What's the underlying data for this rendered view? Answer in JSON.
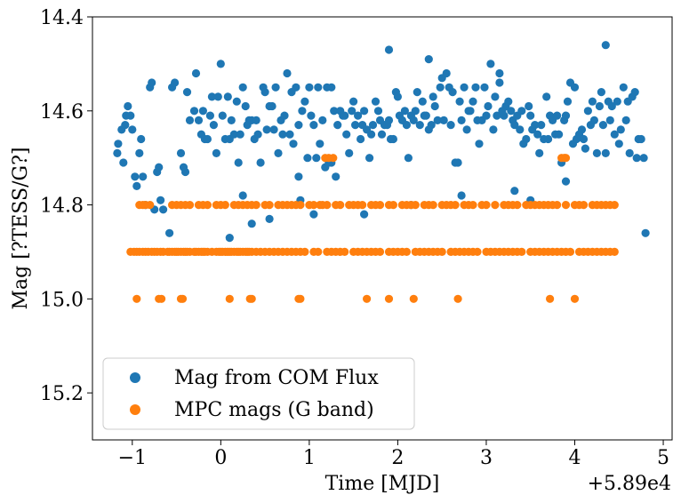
{
  "chart_data": {
    "type": "scatter",
    "xlabel": "Time [MJD]",
    "ylabel": "Mag [?TESS/G?]",
    "x_offset_label": "+5.89e4",
    "xlim": [
      -1.45,
      5.1
    ],
    "ylim": [
      15.3,
      14.4
    ],
    "y_inverted": true,
    "xticks": [
      -1,
      0,
      1,
      2,
      3,
      4,
      5
    ],
    "xtick_labels": [
      "−1",
      "0",
      "1",
      "2",
      "3",
      "4",
      "5"
    ],
    "yticks": [
      14.4,
      14.6,
      14.8,
      15.0,
      15.2
    ],
    "ytick_labels": [
      "14.4",
      "14.6",
      "14.8",
      "15.0",
      "15.2"
    ],
    "grid": false,
    "legend_position": "lower-left",
    "series": [
      {
        "name": "Mag from COM Flux",
        "color": "#1f77b4",
        "x": [
          -1.17,
          -1.16,
          -1.12,
          -1.1,
          -1.08,
          -1.07,
          -1.05,
          -1.02,
          -1.0,
          -0.97,
          -0.95,
          -0.92,
          -0.9,
          -0.88,
          -0.85,
          -0.8,
          -0.78,
          -0.75,
          -0.72,
          -0.7,
          -0.68,
          -0.55,
          -0.52,
          -0.45,
          -0.42,
          -0.4,
          -0.38,
          -0.35,
          -0.3,
          -0.28,
          -0.25,
          -0.22,
          -0.2,
          -0.18,
          -0.15,
          -0.12,
          -0.1,
          -0.08,
          -0.05,
          -0.03,
          0.0,
          0.02,
          0.05,
          0.08,
          0.1,
          0.12,
          0.15,
          0.18,
          0.2,
          0.22,
          0.25,
          0.28,
          0.3,
          0.32,
          0.35,
          0.38,
          0.4,
          0.42,
          0.45,
          0.48,
          0.5,
          0.52,
          0.55,
          0.58,
          0.6,
          0.62,
          0.65,
          0.68,
          0.7,
          0.72,
          0.75,
          0.78,
          0.8,
          0.82,
          0.85,
          0.88,
          0.9,
          0.92,
          0.95,
          0.98,
          1.0,
          1.02,
          1.05,
          1.08,
          1.1,
          1.12,
          1.15,
          1.18,
          1.2,
          1.22,
          1.25,
          1.28,
          1.3,
          1.32,
          1.35,
          1.38,
          1.4,
          1.42,
          1.45,
          1.48,
          1.5,
          1.52,
          1.55,
          1.58,
          1.6,
          1.62,
          1.65,
          1.68,
          1.7,
          1.72,
          1.75,
          1.78,
          1.8,
          1.82,
          1.85,
          1.88,
          1.9,
          1.92,
          1.95,
          1.98,
          2.0,
          2.02,
          2.05,
          2.08,
          2.1,
          2.12,
          2.15,
          2.18,
          2.2,
          2.22,
          2.25,
          2.28,
          2.3,
          2.32,
          2.35,
          2.38,
          2.4,
          2.42,
          2.45,
          2.48,
          2.5,
          2.52,
          2.55,
          2.58,
          2.6,
          2.62,
          2.65,
          2.68,
          2.7,
          2.72,
          2.75,
          2.78,
          2.8,
          2.82,
          2.85,
          2.88,
          2.9,
          2.92,
          2.95,
          2.98,
          3.0,
          3.02,
          3.05,
          3.08,
          3.1,
          3.12,
          3.15,
          3.18,
          3.2,
          3.22,
          3.25,
          3.28,
          3.3,
          3.32,
          3.35,
          3.38,
          3.4,
          3.42,
          3.45,
          3.48,
          3.5,
          3.52,
          3.55,
          3.58,
          3.6,
          3.62,
          3.65,
          3.68,
          3.7,
          3.72,
          3.75,
          3.78,
          3.8,
          3.82,
          3.85,
          3.88,
          3.9,
          3.92,
          3.95,
          3.98,
          4.0,
          4.02,
          4.05,
          4.08,
          4.1,
          4.12,
          4.15,
          4.18,
          4.2,
          4.22,
          4.25,
          4.28,
          4.3,
          4.32,
          4.35,
          4.38,
          4.4,
          4.42,
          4.45,
          4.48,
          4.5,
          4.52,
          4.55,
          4.58,
          4.6,
          4.62,
          4.65,
          4.68,
          4.7,
          4.72,
          4.75,
          4.78,
          4.8,
          -0.58,
          0.1,
          0.25,
          0.88,
          1.25,
          1.9,
          2.35,
          3.15,
          3.5,
          -0.65,
          0.35,
          0.55,
          1.05,
          1.62,
          2.15,
          2.72,
          3.32,
          3.9,
          4.35
        ],
        "y": [
          14.69,
          14.67,
          14.64,
          14.71,
          14.63,
          14.61,
          14.59,
          14.61,
          14.64,
          14.74,
          14.76,
          14.69,
          14.66,
          14.74,
          14.8,
          14.55,
          14.54,
          14.81,
          14.73,
          14.72,
          14.79,
          14.55,
          14.54,
          14.69,
          14.72,
          14.73,
          14.56,
          14.62,
          14.6,
          14.52,
          14.62,
          14.65,
          14.6,
          14.66,
          14.66,
          14.61,
          14.57,
          14.63,
          14.69,
          14.57,
          14.5,
          14.61,
          14.66,
          14.57,
          14.66,
          14.62,
          14.65,
          14.58,
          14.71,
          14.65,
          14.55,
          14.59,
          14.63,
          14.62,
          14.62,
          14.66,
          14.62,
          14.65,
          14.71,
          14.55,
          14.56,
          14.64,
          14.59,
          14.59,
          14.64,
          14.55,
          14.69,
          14.62,
          14.65,
          14.61,
          14.52,
          14.65,
          14.56,
          14.67,
          14.55,
          14.63,
          14.79,
          14.6,
          14.58,
          14.7,
          14.55,
          14.61,
          14.63,
          14.7,
          14.55,
          14.67,
          14.62,
          14.72,
          14.55,
          14.71,
          14.55,
          14.6,
          14.74,
          14.63,
          14.6,
          14.61,
          14.61,
          14.65,
          14.69,
          14.6,
          14.58,
          14.63,
          14.61,
          14.66,
          14.63,
          14.6,
          14.64,
          14.7,
          14.65,
          14.63,
          14.58,
          14.6,
          14.62,
          14.65,
          14.63,
          14.63,
          14.62,
          14.66,
          14.66,
          14.56,
          14.57,
          14.61,
          14.62,
          14.6,
          14.63,
          14.7,
          14.61,
          14.62,
          14.6,
          14.56,
          14.63,
          14.58,
          14.61,
          14.61,
          14.64,
          14.63,
          14.57,
          14.59,
          14.62,
          14.55,
          14.53,
          14.62,
          14.52,
          14.55,
          14.63,
          14.56,
          14.71,
          14.71,
          14.58,
          14.62,
          14.55,
          14.64,
          14.6,
          14.6,
          14.58,
          14.55,
          14.62,
          14.67,
          14.62,
          14.55,
          14.61,
          14.59,
          14.5,
          14.64,
          14.57,
          14.61,
          14.54,
          14.6,
          14.61,
          14.59,
          14.58,
          14.6,
          14.62,
          14.63,
          14.61,
          14.64,
          14.6,
          14.67,
          14.66,
          14.59,
          14.61,
          14.64,
          14.63,
          14.65,
          14.69,
          14.63,
          14.66,
          14.57,
          14.66,
          14.61,
          14.62,
          14.65,
          14.61,
          14.65,
          14.71,
          14.62,
          14.61,
          14.58,
          14.54,
          14.67,
          14.55,
          14.66,
          14.65,
          14.64,
          14.66,
          14.68,
          14.6,
          14.63,
          14.58,
          14.62,
          14.69,
          14.59,
          14.56,
          14.63,
          14.69,
          14.58,
          14.62,
          14.59,
          14.65,
          14.58,
          14.67,
          14.64,
          14.55,
          14.62,
          14.58,
          14.69,
          14.57,
          14.56,
          14.7,
          14.66,
          14.66,
          14.7,
          14.86,
          14.86,
          14.87,
          14.78,
          14.74,
          14.71,
          14.47,
          14.49,
          14.52,
          14.79,
          14.81,
          14.84,
          14.83,
          14.82,
          14.82,
          14.8,
          14.78,
          14.77,
          14.75,
          14.46
        ],
        "marker": "circle"
      },
      {
        "name": "MPC mags (G band)",
        "color": "#ff7f0e",
        "x": [
          -1.02,
          -0.98,
          -0.95,
          -0.92,
          -0.88,
          -0.85,
          -0.82,
          -0.78,
          -0.75,
          -0.72,
          -0.68,
          -0.65,
          -0.6,
          -0.58,
          -0.55,
          -0.52,
          -0.5,
          -0.48,
          -0.45,
          -0.42,
          -0.4,
          -0.38,
          -0.35,
          -0.3,
          -0.28,
          -0.25,
          -0.22,
          -0.2,
          -0.18,
          -0.15,
          -0.1,
          -0.05,
          -0.02,
          0.0,
          0.02,
          0.05,
          0.08,
          0.1,
          0.12,
          0.15,
          0.18,
          0.2,
          0.22,
          0.25,
          0.28,
          0.3,
          0.32,
          0.35,
          0.4,
          0.45,
          0.5,
          0.55,
          0.6,
          0.65,
          0.7,
          0.75,
          0.8,
          0.85,
          0.9,
          0.95,
          1.05,
          1.1,
          1.2,
          1.25,
          1.3,
          1.35,
          1.4,
          1.5,
          1.55,
          1.6,
          1.65,
          1.7,
          1.75,
          1.8,
          1.9,
          1.95,
          2.0,
          2.05,
          2.1,
          2.2,
          2.25,
          2.3,
          2.35,
          2.4,
          2.45,
          2.5,
          2.6,
          2.65,
          2.7,
          2.75,
          2.8,
          2.85,
          2.9,
          3.0,
          3.05,
          3.1,
          3.15,
          3.2,
          3.25,
          3.3,
          3.35,
          3.4,
          3.5,
          3.55,
          3.6,
          3.65,
          3.7,
          3.75,
          3.8,
          3.85,
          3.9,
          3.95,
          4.05,
          4.1,
          4.15,
          4.2,
          4.25,
          4.3,
          4.35,
          4.4,
          4.45,
          -0.92,
          -0.88,
          -0.85,
          -0.8,
          -0.55,
          -0.5,
          -0.45,
          -0.4,
          -0.35,
          -0.25,
          -0.2,
          -0.15,
          -0.05,
          0.0,
          0.05,
          0.15,
          0.2,
          0.25,
          0.3,
          0.35,
          0.4,
          0.5,
          0.55,
          0.65,
          0.7,
          0.75,
          0.8,
          0.85,
          0.9,
          1.0,
          1.05,
          1.12,
          1.15,
          1.2,
          1.3,
          1.35,
          1.45,
          1.5,
          1.55,
          1.6,
          1.7,
          1.75,
          1.8,
          1.9,
          1.95,
          2.05,
          2.1,
          2.15,
          2.2,
          2.3,
          2.35,
          2.4,
          2.5,
          2.55,
          2.6,
          2.65,
          2.75,
          2.8,
          2.85,
          2.95,
          3.0,
          3.1,
          3.2,
          3.25,
          3.3,
          3.35,
          3.45,
          3.5,
          3.55,
          3.6,
          3.65,
          3.7,
          3.75,
          3.8,
          3.9,
          4.0,
          4.05,
          4.1,
          4.2,
          4.25,
          4.3,
          4.35,
          4.4,
          4.45,
          1.18,
          1.22,
          1.27,
          3.85,
          3.88,
          3.9,
          -0.95,
          -0.7,
          -0.67,
          -0.45,
          -0.43,
          0.1,
          0.33,
          0.35,
          0.88,
          0.9,
          1.65,
          1.9,
          2.18,
          2.68,
          3.72,
          4.0
        ],
        "y": [
          14.9,
          14.9,
          14.9,
          14.9,
          14.9,
          14.9,
          14.9,
          14.9,
          14.9,
          14.9,
          14.9,
          14.9,
          14.9,
          14.9,
          14.9,
          14.9,
          14.9,
          14.9,
          14.9,
          14.9,
          14.9,
          14.9,
          14.9,
          14.9,
          14.9,
          14.9,
          14.9,
          14.9,
          14.9,
          14.9,
          14.9,
          14.9,
          14.9,
          14.9,
          14.9,
          14.9,
          14.9,
          14.9,
          14.9,
          14.9,
          14.9,
          14.9,
          14.9,
          14.9,
          14.9,
          14.9,
          14.9,
          14.9,
          14.9,
          14.9,
          14.9,
          14.9,
          14.9,
          14.9,
          14.9,
          14.9,
          14.9,
          14.9,
          14.9,
          14.9,
          14.9,
          14.9,
          14.9,
          14.9,
          14.9,
          14.9,
          14.9,
          14.9,
          14.9,
          14.9,
          14.9,
          14.9,
          14.9,
          14.9,
          14.9,
          14.9,
          14.9,
          14.9,
          14.9,
          14.9,
          14.9,
          14.9,
          14.9,
          14.9,
          14.9,
          14.9,
          14.9,
          14.9,
          14.9,
          14.9,
          14.9,
          14.9,
          14.9,
          14.9,
          14.9,
          14.9,
          14.9,
          14.9,
          14.9,
          14.9,
          14.9,
          14.9,
          14.9,
          14.9,
          14.9,
          14.9,
          14.9,
          14.9,
          14.9,
          14.9,
          14.9,
          14.9,
          14.9,
          14.9,
          14.9,
          14.9,
          14.9,
          14.9,
          14.9,
          14.9,
          14.9,
          14.8,
          14.8,
          14.8,
          14.8,
          14.8,
          14.8,
          14.8,
          14.8,
          14.8,
          14.8,
          14.8,
          14.8,
          14.8,
          14.8,
          14.8,
          14.8,
          14.8,
          14.8,
          14.8,
          14.8,
          14.8,
          14.8,
          14.8,
          14.8,
          14.8,
          14.8,
          14.8,
          14.8,
          14.8,
          14.8,
          14.8,
          14.8,
          14.8,
          14.8,
          14.8,
          14.8,
          14.8,
          14.8,
          14.8,
          14.8,
          14.8,
          14.8,
          14.8,
          14.8,
          14.8,
          14.8,
          14.8,
          14.8,
          14.8,
          14.8,
          14.8,
          14.8,
          14.8,
          14.8,
          14.8,
          14.8,
          14.8,
          14.8,
          14.8,
          14.8,
          14.8,
          14.8,
          14.8,
          14.8,
          14.8,
          14.8,
          14.8,
          14.8,
          14.8,
          14.8,
          14.8,
          14.8,
          14.8,
          14.8,
          14.8,
          14.8,
          14.8,
          14.8,
          14.8,
          14.8,
          14.8,
          14.8,
          14.8,
          14.8,
          14.7,
          14.7,
          14.7,
          14.7,
          14.7,
          14.7,
          15.0,
          15.0,
          15.0,
          15.0,
          15.0,
          15.0,
          15.0,
          15.0,
          15.0,
          15.0,
          15.0,
          15.0,
          15.0,
          15.0,
          15.0,
          15.0
        ],
        "marker": "circle"
      }
    ]
  }
}
